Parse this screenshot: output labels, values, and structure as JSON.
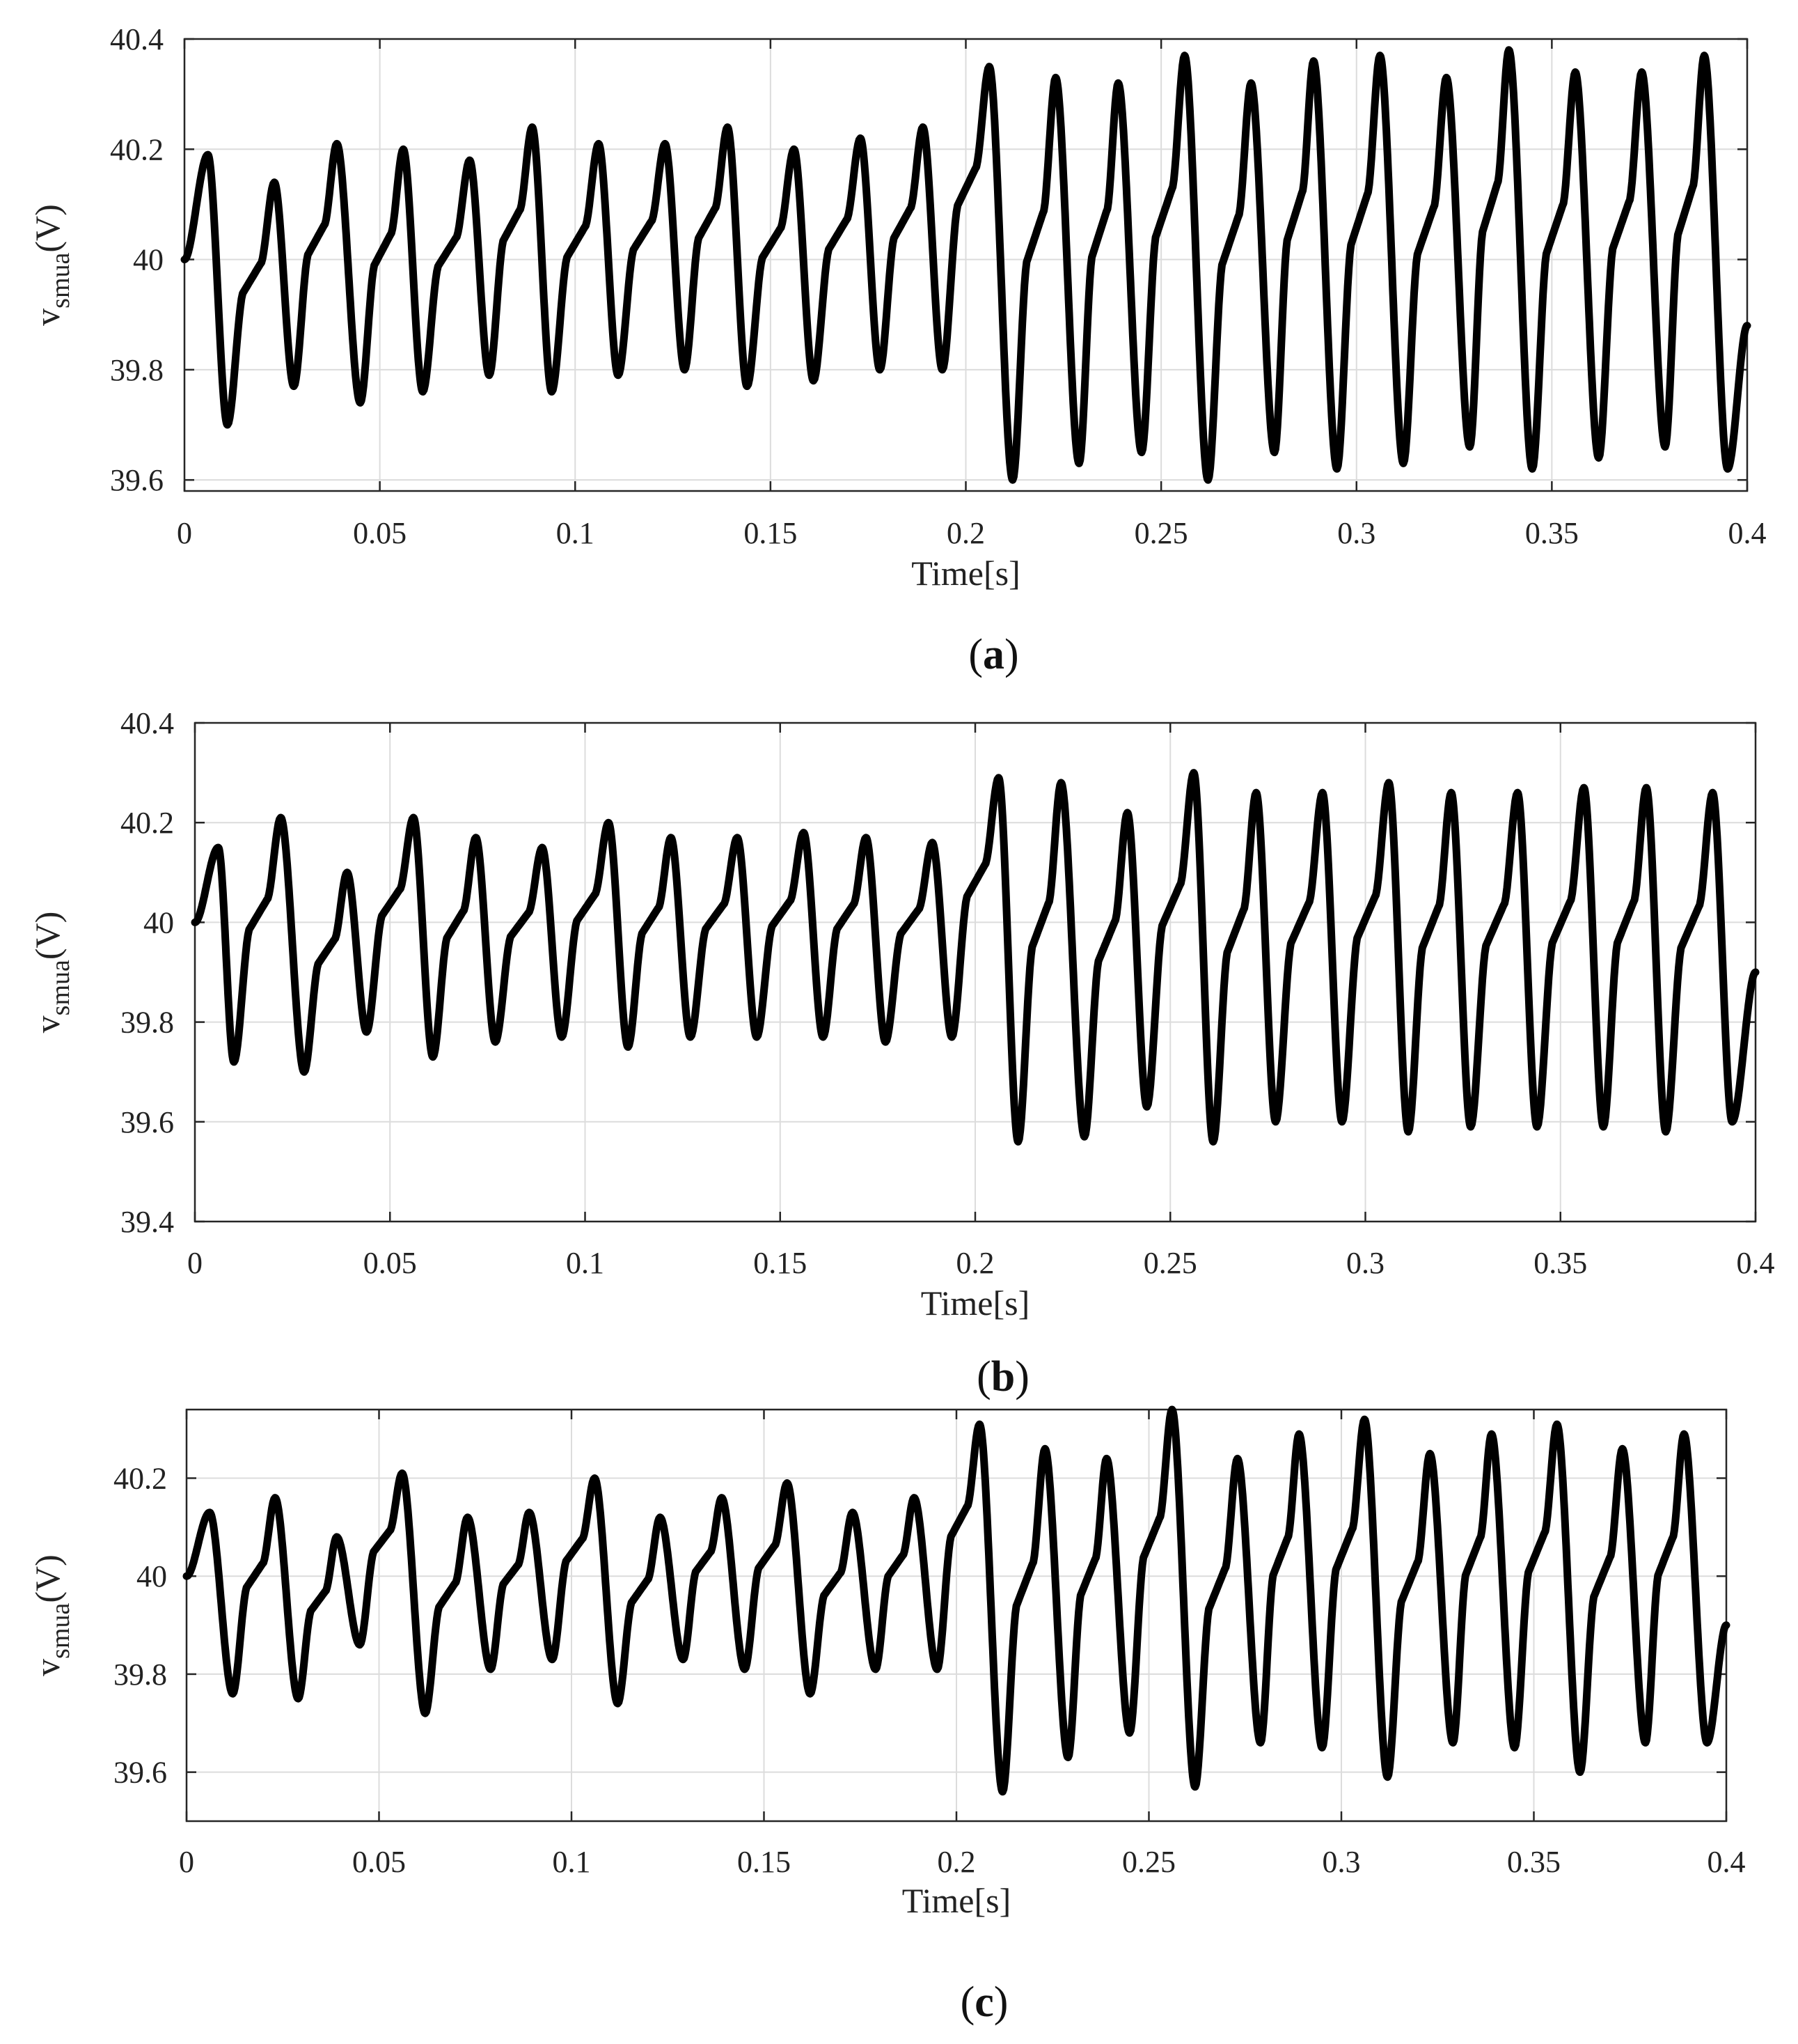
{
  "chart_data": [
    {
      "type": "line",
      "caption": "a",
      "xlabel": "Time[s]",
      "ylabel_main": "v",
      "ylabel_sub": "smua",
      "ylabel_unit": "(V)",
      "xlim": [
        0,
        0.4
      ],
      "ylim": [
        39.58,
        40.4
      ],
      "xticks": [
        "0",
        "0.05",
        "0.1",
        "0.15",
        "0.2",
        "0.25",
        "0.3",
        "0.35",
        "0.4"
      ],
      "yticks": [
        "39.6",
        "39.8",
        "40",
        "40.2",
        "40.4"
      ],
      "grid": true,
      "line_color": "#000000",
      "series": [
        {
          "start": [
            0,
            40.0
          ],
          "cycles": [
            {
              "peak_t": 0.006,
              "peak": 40.19,
              "trough_t": 0.011,
              "trough": 39.7
            },
            {
              "peak_t": 0.023,
              "peak": 40.14,
              "trough_t": 0.028,
              "trough": 39.77
            },
            {
              "peak_t": 0.039,
              "peak": 40.21,
              "trough_t": 0.045,
              "trough": 39.74
            },
            {
              "peak_t": 0.056,
              "peak": 40.2,
              "trough_t": 0.061,
              "trough": 39.76
            },
            {
              "peak_t": 0.073,
              "peak": 40.18,
              "trough_t": 0.078,
              "trough": 39.79
            },
            {
              "peak_t": 0.089,
              "peak": 40.24,
              "trough_t": 0.094,
              "trough": 39.76
            },
            {
              "peak_t": 0.106,
              "peak": 40.21,
              "trough_t": 0.111,
              "trough": 39.79
            },
            {
              "peak_t": 0.123,
              "peak": 40.21,
              "trough_t": 0.128,
              "trough": 39.8
            },
            {
              "peak_t": 0.139,
              "peak": 40.24,
              "trough_t": 0.144,
              "trough": 39.77
            },
            {
              "peak_t": 0.156,
              "peak": 40.2,
              "trough_t": 0.161,
              "trough": 39.78
            },
            {
              "peak_t": 0.173,
              "peak": 40.22,
              "trough_t": 0.178,
              "trough": 39.8
            },
            {
              "peak_t": 0.189,
              "peak": 40.24,
              "trough_t": 0.194,
              "trough": 39.8
            },
            {
              "peak_t": 0.206,
              "peak": 40.35,
              "trough_t": 0.212,
              "trough": 39.6
            },
            {
              "peak_t": 0.223,
              "peak": 40.33,
              "trough_t": 0.229,
              "trough": 39.63
            },
            {
              "peak_t": 0.239,
              "peak": 40.32,
              "trough_t": 0.245,
              "trough": 39.65
            },
            {
              "peak_t": 0.256,
              "peak": 40.37,
              "trough_t": 0.262,
              "trough": 39.6
            },
            {
              "peak_t": 0.273,
              "peak": 40.32,
              "trough_t": 0.279,
              "trough": 39.65
            },
            {
              "peak_t": 0.289,
              "peak": 40.36,
              "trough_t": 0.295,
              "trough": 39.62
            },
            {
              "peak_t": 0.306,
              "peak": 40.37,
              "trough_t": 0.312,
              "trough": 39.63
            },
            {
              "peak_t": 0.323,
              "peak": 40.33,
              "trough_t": 0.329,
              "trough": 39.66
            },
            {
              "peak_t": 0.339,
              "peak": 40.38,
              "trough_t": 0.345,
              "trough": 39.62
            },
            {
              "peak_t": 0.356,
              "peak": 40.34,
              "trough_t": 0.362,
              "trough": 39.64
            },
            {
              "peak_t": 0.373,
              "peak": 40.34,
              "trough_t": 0.379,
              "trough": 39.66
            },
            {
              "peak_t": 0.389,
              "peak": 40.37,
              "trough_t": 0.395,
              "trough": 39.62
            }
          ],
          "end": [
            0.4,
            39.88
          ]
        }
      ]
    },
    {
      "type": "line",
      "caption": "b",
      "xlabel": "Time[s]",
      "ylabel_main": "v",
      "ylabel_sub": "smua",
      "ylabel_unit": "(V)",
      "xlim": [
        0,
        0.4
      ],
      "ylim": [
        39.4,
        40.4
      ],
      "xticks": [
        "0",
        "0.05",
        "0.1",
        "0.15",
        "0.2",
        "0.25",
        "0.3",
        "0.35",
        "0.4"
      ],
      "yticks": [
        "39.4",
        "39.6",
        "39.8",
        "40",
        "40.2",
        "40.4"
      ],
      "grid": true,
      "line_color": "#000000",
      "series": [
        {
          "start": [
            0,
            40.0
          ],
          "cycles": [
            {
              "peak_t": 0.006,
              "peak": 40.15,
              "trough_t": 0.01,
              "trough": 39.72
            },
            {
              "peak_t": 0.022,
              "peak": 40.21,
              "trough_t": 0.028,
              "trough": 39.7
            },
            {
              "peak_t": 0.039,
              "peak": 40.1,
              "trough_t": 0.044,
              "trough": 39.78
            },
            {
              "peak_t": 0.056,
              "peak": 40.21,
              "trough_t": 0.061,
              "trough": 39.73
            },
            {
              "peak_t": 0.072,
              "peak": 40.17,
              "trough_t": 0.077,
              "trough": 39.76
            },
            {
              "peak_t": 0.089,
              "peak": 40.15,
              "trough_t": 0.094,
              "trough": 39.77
            },
            {
              "peak_t": 0.106,
              "peak": 40.2,
              "trough_t": 0.111,
              "trough": 39.75
            },
            {
              "peak_t": 0.122,
              "peak": 40.17,
              "trough_t": 0.127,
              "trough": 39.77
            },
            {
              "peak_t": 0.139,
              "peak": 40.17,
              "trough_t": 0.144,
              "trough": 39.77
            },
            {
              "peak_t": 0.156,
              "peak": 40.18,
              "trough_t": 0.161,
              "trough": 39.77
            },
            {
              "peak_t": 0.172,
              "peak": 40.17,
              "trough_t": 0.177,
              "trough": 39.76
            },
            {
              "peak_t": 0.189,
              "peak": 40.16,
              "trough_t": 0.194,
              "trough": 39.77
            },
            {
              "peak_t": 0.206,
              "peak": 40.29,
              "trough_t": 0.211,
              "trough": 39.56
            },
            {
              "peak_t": 0.222,
              "peak": 40.28,
              "trough_t": 0.228,
              "trough": 39.57
            },
            {
              "peak_t": 0.239,
              "peak": 40.22,
              "trough_t": 0.244,
              "trough": 39.63
            },
            {
              "peak_t": 0.256,
              "peak": 40.3,
              "trough_t": 0.261,
              "trough": 39.56
            },
            {
              "peak_t": 0.272,
              "peak": 40.26,
              "trough_t": 0.277,
              "trough": 39.6
            },
            {
              "peak_t": 0.289,
              "peak": 40.26,
              "trough_t": 0.294,
              "trough": 39.6
            },
            {
              "peak_t": 0.306,
              "peak": 40.28,
              "trough_t": 0.311,
              "trough": 39.58
            },
            {
              "peak_t": 0.322,
              "peak": 40.26,
              "trough_t": 0.327,
              "trough": 39.59
            },
            {
              "peak_t": 0.339,
              "peak": 40.26,
              "trough_t": 0.344,
              "trough": 39.59
            },
            {
              "peak_t": 0.356,
              "peak": 40.27,
              "trough_t": 0.361,
              "trough": 39.59
            },
            {
              "peak_t": 0.372,
              "peak": 40.27,
              "trough_t": 0.377,
              "trough": 39.58
            },
            {
              "peak_t": 0.389,
              "peak": 40.26,
              "trough_t": 0.394,
              "trough": 39.6
            }
          ],
          "end": [
            0.4,
            39.9
          ]
        }
      ]
    },
    {
      "type": "line",
      "caption": "c",
      "xlabel": "Time[s]",
      "ylabel_main": "v",
      "ylabel_sub": "smua",
      "ylabel_unit": "(V)",
      "xlim": [
        0,
        0.4
      ],
      "ylim": [
        39.5,
        40.34
      ],
      "xticks": [
        "0",
        "0.05",
        "0.1",
        "0.15",
        "0.2",
        "0.25",
        "0.3",
        "0.35",
        "0.4"
      ],
      "yticks": [
        "39.6",
        "39.8",
        "40",
        "40.2"
      ],
      "grid": true,
      "line_color": "#000000",
      "series": [
        {
          "start": [
            0,
            40.0
          ],
          "cycles": [
            {
              "peak_t": 0.006,
              "peak": 40.13,
              "trough_t": 0.012,
              "trough": 39.76
            },
            {
              "peak_t": 0.023,
              "peak": 40.16,
              "trough_t": 0.029,
              "trough": 39.75
            },
            {
              "peak_t": 0.039,
              "peak": 40.08,
              "trough_t": 0.045,
              "trough": 39.86
            },
            {
              "peak_t": 0.056,
              "peak": 40.21,
              "trough_t": 0.062,
              "trough": 39.72
            },
            {
              "peak_t": 0.073,
              "peak": 40.12,
              "trough_t": 0.079,
              "trough": 39.81
            },
            {
              "peak_t": 0.089,
              "peak": 40.13,
              "trough_t": 0.095,
              "trough": 39.83
            },
            {
              "peak_t": 0.106,
              "peak": 40.2,
              "trough_t": 0.112,
              "trough": 39.74
            },
            {
              "peak_t": 0.123,
              "peak": 40.12,
              "trough_t": 0.129,
              "trough": 39.83
            },
            {
              "peak_t": 0.139,
              "peak": 40.16,
              "trough_t": 0.145,
              "trough": 39.81
            },
            {
              "peak_t": 0.156,
              "peak": 40.19,
              "trough_t": 0.162,
              "trough": 39.76
            },
            {
              "peak_t": 0.173,
              "peak": 40.13,
              "trough_t": 0.179,
              "trough": 39.81
            },
            {
              "peak_t": 0.189,
              "peak": 40.16,
              "trough_t": 0.195,
              "trough": 39.81
            },
            {
              "peak_t": 0.206,
              "peak": 40.31,
              "trough_t": 0.212,
              "trough": 39.56
            },
            {
              "peak_t": 0.223,
              "peak": 40.26,
              "trough_t": 0.229,
              "trough": 39.63
            },
            {
              "peak_t": 0.239,
              "peak": 40.24,
              "trough_t": 0.245,
              "trough": 39.68
            },
            {
              "peak_t": 0.256,
              "peak": 40.34,
              "trough_t": 0.262,
              "trough": 39.57
            },
            {
              "peak_t": 0.273,
              "peak": 40.24,
              "trough_t": 0.279,
              "trough": 39.66
            },
            {
              "peak_t": 0.289,
              "peak": 40.29,
              "trough_t": 0.295,
              "trough": 39.65
            },
            {
              "peak_t": 0.306,
              "peak": 40.32,
              "trough_t": 0.312,
              "trough": 39.59
            },
            {
              "peak_t": 0.323,
              "peak": 40.25,
              "trough_t": 0.329,
              "trough": 39.66
            },
            {
              "peak_t": 0.339,
              "peak": 40.29,
              "trough_t": 0.345,
              "trough": 39.65
            },
            {
              "peak_t": 0.356,
              "peak": 40.31,
              "trough_t": 0.362,
              "trough": 39.6
            },
            {
              "peak_t": 0.373,
              "peak": 40.26,
              "trough_t": 0.379,
              "trough": 39.66
            },
            {
              "peak_t": 0.389,
              "peak": 40.29,
              "trough_t": 0.395,
              "trough": 39.66
            }
          ],
          "end": [
            0.4,
            39.9
          ]
        }
      ]
    }
  ]
}
